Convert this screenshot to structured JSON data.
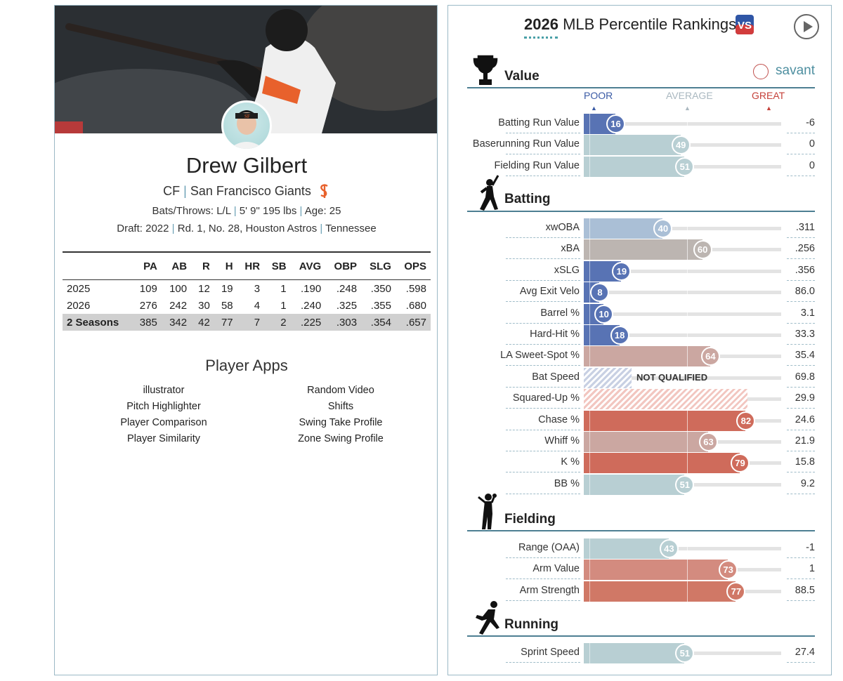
{
  "player": {
    "name": "Drew Gilbert",
    "position": "CF",
    "team": "San Francisco Giants",
    "bats_throws_label": "Bats/Throws:",
    "bats_throws": "L/L",
    "height_weight": "5' 9\" 195 lbs",
    "age_label": "Age:",
    "age": "25",
    "draft_label": "Draft:",
    "draft_year": "2022",
    "draft_round": "Rd. 1, No. 28,",
    "draft_team": "Houston Astros",
    "college": "Tennessee"
  },
  "stats": {
    "headers": [
      "",
      "PA",
      "AB",
      "R",
      "H",
      "HR",
      "SB",
      "AVG",
      "OBP",
      "SLG",
      "OPS"
    ],
    "rows": [
      [
        "2025",
        "109",
        "100",
        "12",
        "19",
        "3",
        "1",
        ".190",
        ".248",
        ".350",
        ".598"
      ],
      [
        "2026",
        "276",
        "242",
        "30",
        "58",
        "4",
        "1",
        ".240",
        ".325",
        ".355",
        ".680"
      ]
    ],
    "total": [
      "2 Seasons",
      "385",
      "342",
      "42",
      "77",
      "7",
      "2",
      ".225",
      ".303",
      ".354",
      ".657"
    ]
  },
  "apps": {
    "title": "Player Apps",
    "left": [
      "illustrator",
      "Pitch Highlighter",
      "Player Comparison",
      "Player Similarity"
    ],
    "right": [
      "Random Video",
      "Shifts",
      "Swing Take Profile",
      "Zone Swing Profile"
    ]
  },
  "rankings": {
    "title_year": "2026",
    "title_rest": "MLB Percentile Rankings",
    "brand": "savant",
    "scale": {
      "poor": "POOR",
      "average": "AVERAGE",
      "great": "GREAT"
    },
    "not_qualified": "NOT QUALIFIED",
    "colors": {
      "blue": "#5873b4",
      "lightblue": "#aabfd6",
      "teal": "#b8cfd3",
      "gray": "#bcb5b1",
      "rose": "#cba7a1",
      "red": "#cf6b5b"
    },
    "sections": [
      {
        "key": "value",
        "title": "Value",
        "rows": [
          {
            "label": "Batting Run Value",
            "pct": 16,
            "value": "-6",
            "color": "#5873b4"
          },
          {
            "label": "Baserunning Run Value",
            "pct": 49,
            "value": "0",
            "color": "#b8cfd3"
          },
          {
            "label": "Fielding Run Value",
            "pct": 51,
            "value": "0",
            "color": "#b8cfd3"
          }
        ]
      },
      {
        "key": "batting",
        "title": "Batting",
        "rows": [
          {
            "label": "xwOBA",
            "pct": 40,
            "value": ".311",
            "color": "#aabfd6"
          },
          {
            "label": "xBA",
            "pct": 60,
            "value": ".256",
            "color": "#bcb5b1"
          },
          {
            "label": "xSLG",
            "pct": 19,
            "value": ".356",
            "color": "#5873b4"
          },
          {
            "label": "Avg Exit Velo",
            "pct": 8,
            "value": "86.0",
            "color": "#5873b4"
          },
          {
            "label": "Barrel %",
            "pct": 10,
            "value": "3.1",
            "color": "#5873b4"
          },
          {
            "label": "Hard-Hit %",
            "pct": 18,
            "value": "33.3",
            "color": "#5873b4"
          },
          {
            "label": "LA Sweet-Spot %",
            "pct": 64,
            "value": "35.4",
            "color": "#cba7a1"
          },
          {
            "label": "Bat Speed",
            "pct": null,
            "value": "69.8",
            "hatch": "blue"
          },
          {
            "label": "Squared-Up %",
            "pct": null,
            "value": "29.9",
            "hatch": "red"
          },
          {
            "label": "Chase %",
            "pct": 82,
            "value": "24.6",
            "color": "#cf6b5b"
          },
          {
            "label": "Whiff %",
            "pct": 63,
            "value": "21.9",
            "color": "#cba7a1"
          },
          {
            "label": "K %",
            "pct": 79,
            "value": "15.8",
            "color": "#cf6b5b"
          },
          {
            "label": "BB %",
            "pct": 51,
            "value": "9.2",
            "color": "#b8cfd3"
          }
        ]
      },
      {
        "key": "fielding",
        "title": "Fielding",
        "rows": [
          {
            "label": "Range (OAA)",
            "pct": 43,
            "value": "-1",
            "color": "#b8cfd3"
          },
          {
            "label": "Arm Value",
            "pct": 73,
            "value": "1",
            "color": "#d38b7f"
          },
          {
            "label": "Arm Strength",
            "pct": 77,
            "value": "88.5",
            "color": "#d07866"
          }
        ]
      },
      {
        "key": "running",
        "title": "Running",
        "rows": [
          {
            "label": "Sprint Speed",
            "pct": 51,
            "value": "27.4",
            "color": "#b8cfd3"
          }
        ]
      }
    ]
  }
}
